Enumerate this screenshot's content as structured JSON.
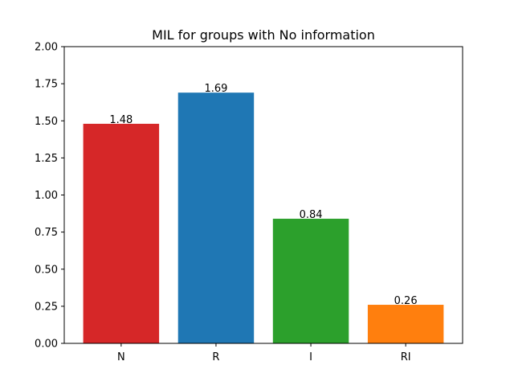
{
  "chart_data": {
    "type": "bar",
    "title": "MIL for groups with No information",
    "xlabel": "",
    "ylabel": "",
    "categories": [
      "N",
      "R",
      "I",
      "RI"
    ],
    "values": [
      1.48,
      1.69,
      0.84,
      0.26
    ],
    "value_labels": [
      "1.48",
      "1.69",
      "0.84",
      "0.26"
    ],
    "bar_colors": [
      "#d62728",
      "#1f77b4",
      "#2ca02c",
      "#ff7f0e"
    ],
    "ylim": [
      0,
      2.0
    ],
    "yticks": [
      0.0,
      0.25,
      0.5,
      0.75,
      1.0,
      1.25,
      1.5,
      1.75,
      2.0
    ],
    "ytick_labels": [
      "0.00",
      "0.25",
      "0.50",
      "0.75",
      "1.00",
      "1.25",
      "1.50",
      "1.75",
      "2.00"
    ],
    "grid": false,
    "legend": "none"
  }
}
